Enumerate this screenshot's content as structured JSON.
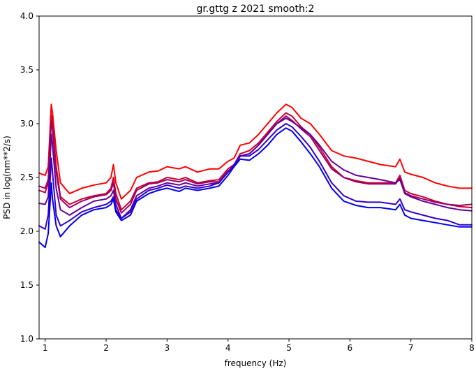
{
  "chart_data": {
    "type": "line",
    "title": "gr.gttg z 2021 smooth:2",
    "xlabel": "frequency (Hz)",
    "ylabel": "PSD in log(nm**2/s)",
    "xlim": [
      0.9,
      8.0
    ],
    "ylim": [
      1.0,
      4.0
    ],
    "xticks": [
      1,
      2,
      3,
      4,
      5,
      6,
      7,
      8
    ],
    "yticks": [
      1.0,
      1.5,
      2.0,
      2.5,
      3.0,
      3.5,
      4.0
    ],
    "xtick_labels": [
      "1",
      "2",
      "3",
      "4",
      "5",
      "6",
      "7",
      "8"
    ],
    "ytick_labels": [
      "1.0",
      "1.5",
      "2.0",
      "2.5",
      "3.0",
      "3.5",
      "4.0"
    ],
    "grid": false,
    "legend": "none",
    "series": [
      {
        "color": "#ff0000",
        "x": [
          0.9,
          1.0,
          1.05,
          1.1,
          1.12,
          1.18,
          1.25,
          1.4,
          1.6,
          1.8,
          2.0,
          2.08,
          2.12,
          2.16,
          2.25,
          2.4,
          2.5,
          2.7,
          2.85,
          3.0,
          3.2,
          3.3,
          3.5,
          3.7,
          3.85,
          4.0,
          4.1,
          4.2,
          4.35,
          4.5,
          4.65,
          4.8,
          4.95,
          5.05,
          5.2,
          5.35,
          5.5,
          5.7,
          5.9,
          6.1,
          6.3,
          6.5,
          6.75,
          6.82,
          6.9,
          7.0,
          7.2,
          7.4,
          7.6,
          7.8,
          8.0
        ],
        "y": [
          2.54,
          2.52,
          2.6,
          3.18,
          3.1,
          2.75,
          2.45,
          2.35,
          2.4,
          2.43,
          2.45,
          2.5,
          2.62,
          2.45,
          2.3,
          2.38,
          2.5,
          2.55,
          2.56,
          2.6,
          2.58,
          2.6,
          2.55,
          2.58,
          2.58,
          2.65,
          2.68,
          2.8,
          2.82,
          2.9,
          3.0,
          3.1,
          3.18,
          3.15,
          3.05,
          3.0,
          2.9,
          2.75,
          2.7,
          2.68,
          2.65,
          2.62,
          2.6,
          2.67,
          2.55,
          2.53,
          2.5,
          2.45,
          2.42,
          2.4,
          2.4
        ]
      },
      {
        "color": "#cc0033",
        "x": [
          0.9,
          1.0,
          1.05,
          1.1,
          1.12,
          1.18,
          1.25,
          1.4,
          1.6,
          1.8,
          2.0,
          2.08,
          2.12,
          2.16,
          2.25,
          2.4,
          2.5,
          2.7,
          2.85,
          3.0,
          3.2,
          3.3,
          3.5,
          3.7,
          3.85,
          4.0,
          4.1,
          4.2,
          4.35,
          4.5,
          4.65,
          4.8,
          4.95,
          5.05,
          5.2,
          5.35,
          5.5,
          5.7,
          5.9,
          6.1,
          6.3,
          6.5,
          6.75,
          6.82,
          6.9,
          7.0,
          7.2,
          7.4,
          7.6,
          7.8,
          8.0
        ],
        "y": [
          2.38,
          2.36,
          2.45,
          3.08,
          3.0,
          2.6,
          2.32,
          2.25,
          2.3,
          2.33,
          2.35,
          2.4,
          2.5,
          2.35,
          2.2,
          2.28,
          2.4,
          2.45,
          2.46,
          2.5,
          2.48,
          2.5,
          2.45,
          2.47,
          2.48,
          2.58,
          2.62,
          2.72,
          2.75,
          2.82,
          2.92,
          3.02,
          3.1,
          3.07,
          2.97,
          2.9,
          2.78,
          2.6,
          2.5,
          2.47,
          2.45,
          2.45,
          2.45,
          2.52,
          2.38,
          2.35,
          2.32,
          2.28,
          2.25,
          2.23,
          2.22
        ]
      },
      {
        "color": "#990066",
        "x": [
          0.9,
          1.0,
          1.05,
          1.1,
          1.12,
          1.18,
          1.25,
          1.4,
          1.6,
          1.8,
          2.0,
          2.08,
          2.12,
          2.16,
          2.25,
          2.4,
          2.5,
          2.7,
          2.85,
          3.0,
          3.2,
          3.3,
          3.5,
          3.7,
          3.85,
          4.0,
          4.1,
          4.2,
          4.35,
          4.5,
          4.65,
          4.8,
          4.95,
          5.05,
          5.2,
          5.35,
          5.5,
          5.7,
          5.9,
          6.1,
          6.3,
          6.5,
          6.75,
          6.82,
          6.9,
          7.0,
          7.2,
          7.4,
          7.6,
          7.8,
          8.0
        ],
        "y": [
          2.42,
          2.4,
          2.48,
          3.02,
          2.95,
          2.55,
          2.3,
          2.22,
          2.28,
          2.32,
          2.34,
          2.38,
          2.45,
          2.3,
          2.17,
          2.25,
          2.38,
          2.44,
          2.45,
          2.48,
          2.46,
          2.48,
          2.44,
          2.46,
          2.46,
          2.56,
          2.6,
          2.7,
          2.72,
          2.8,
          2.9,
          3.0,
          3.07,
          3.03,
          2.95,
          2.88,
          2.75,
          2.58,
          2.5,
          2.46,
          2.44,
          2.44,
          2.44,
          2.5,
          2.36,
          2.33,
          2.3,
          2.27,
          2.25,
          2.24,
          2.25
        ]
      },
      {
        "color": "#660099",
        "x": [
          0.9,
          1.0,
          1.05,
          1.1,
          1.12,
          1.18,
          1.25,
          1.4,
          1.6,
          1.8,
          2.0,
          2.08,
          2.12,
          2.16,
          2.25,
          2.4,
          2.5,
          2.7,
          2.85,
          3.0,
          3.2,
          3.3,
          3.5,
          3.7,
          3.85,
          4.0,
          4.1,
          4.2,
          4.35,
          4.5,
          4.65,
          4.8,
          4.95,
          5.05,
          5.2,
          5.35,
          5.5,
          5.7,
          5.9,
          6.1,
          6.3,
          6.5,
          6.75,
          6.82,
          6.9,
          7.0,
          7.2,
          7.4,
          7.6,
          7.8,
          8.0
        ],
        "y": [
          2.26,
          2.25,
          2.32,
          2.9,
          2.8,
          2.4,
          2.2,
          2.15,
          2.22,
          2.28,
          2.3,
          2.33,
          2.38,
          2.25,
          2.12,
          2.2,
          2.33,
          2.4,
          2.42,
          2.45,
          2.43,
          2.45,
          2.42,
          2.44,
          2.45,
          2.55,
          2.6,
          2.7,
          2.72,
          2.8,
          2.9,
          3.0,
          3.05,
          3.02,
          2.96,
          2.9,
          2.8,
          2.65,
          2.57,
          2.52,
          2.5,
          2.48,
          2.45,
          2.48,
          2.35,
          2.32,
          2.28,
          2.25,
          2.22,
          2.2,
          2.19
        ]
      },
      {
        "color": "#3300cc",
        "x": [
          0.9,
          1.0,
          1.05,
          1.1,
          1.12,
          1.18,
          1.25,
          1.4,
          1.6,
          1.8,
          2.0,
          2.08,
          2.12,
          2.16,
          2.25,
          2.4,
          2.5,
          2.7,
          2.85,
          3.0,
          3.2,
          3.3,
          3.5,
          3.7,
          3.85,
          4.0,
          4.1,
          4.2,
          4.35,
          4.5,
          4.65,
          4.8,
          4.95,
          5.05,
          5.2,
          5.35,
          5.5,
          5.7,
          5.9,
          6.1,
          6.3,
          6.5,
          6.75,
          6.82,
          6.9,
          7.0,
          7.2,
          7.4,
          7.6,
          7.8,
          8.0
        ],
        "y": [
          2.05,
          2.02,
          2.15,
          2.68,
          2.55,
          2.15,
          2.05,
          2.1,
          2.18,
          2.22,
          2.25,
          2.28,
          2.32,
          2.2,
          2.12,
          2.18,
          2.3,
          2.38,
          2.4,
          2.43,
          2.4,
          2.42,
          2.4,
          2.42,
          2.45,
          2.55,
          2.62,
          2.7,
          2.7,
          2.76,
          2.85,
          2.94,
          3.0,
          2.97,
          2.88,
          2.78,
          2.65,
          2.45,
          2.33,
          2.28,
          2.27,
          2.27,
          2.25,
          2.3,
          2.2,
          2.18,
          2.15,
          2.12,
          2.1,
          2.06,
          2.06
        ]
      },
      {
        "color": "#0000ee",
        "x": [
          0.9,
          1.0,
          1.05,
          1.1,
          1.12,
          1.18,
          1.25,
          1.4,
          1.6,
          1.8,
          2.0,
          2.08,
          2.12,
          2.16,
          2.25,
          2.4,
          2.5,
          2.7,
          2.85,
          3.0,
          3.2,
          3.3,
          3.5,
          3.7,
          3.85,
          4.0,
          4.1,
          4.2,
          4.35,
          4.5,
          4.65,
          4.8,
          4.95,
          5.05,
          5.2,
          5.35,
          5.5,
          5.7,
          5.9,
          6.1,
          6.3,
          6.5,
          6.75,
          6.82,
          6.9,
          7.0,
          7.2,
          7.4,
          7.6,
          7.8,
          8.0
        ],
        "y": [
          1.9,
          1.85,
          1.98,
          2.45,
          2.3,
          2.05,
          1.95,
          2.05,
          2.15,
          2.2,
          2.22,
          2.25,
          2.3,
          2.18,
          2.1,
          2.15,
          2.28,
          2.35,
          2.38,
          2.4,
          2.37,
          2.4,
          2.38,
          2.4,
          2.42,
          2.52,
          2.6,
          2.67,
          2.66,
          2.72,
          2.8,
          2.9,
          2.96,
          2.93,
          2.83,
          2.72,
          2.6,
          2.4,
          2.28,
          2.24,
          2.22,
          2.22,
          2.2,
          2.25,
          2.15,
          2.12,
          2.1,
          2.08,
          2.06,
          2.04,
          2.04
        ]
      }
    ]
  }
}
